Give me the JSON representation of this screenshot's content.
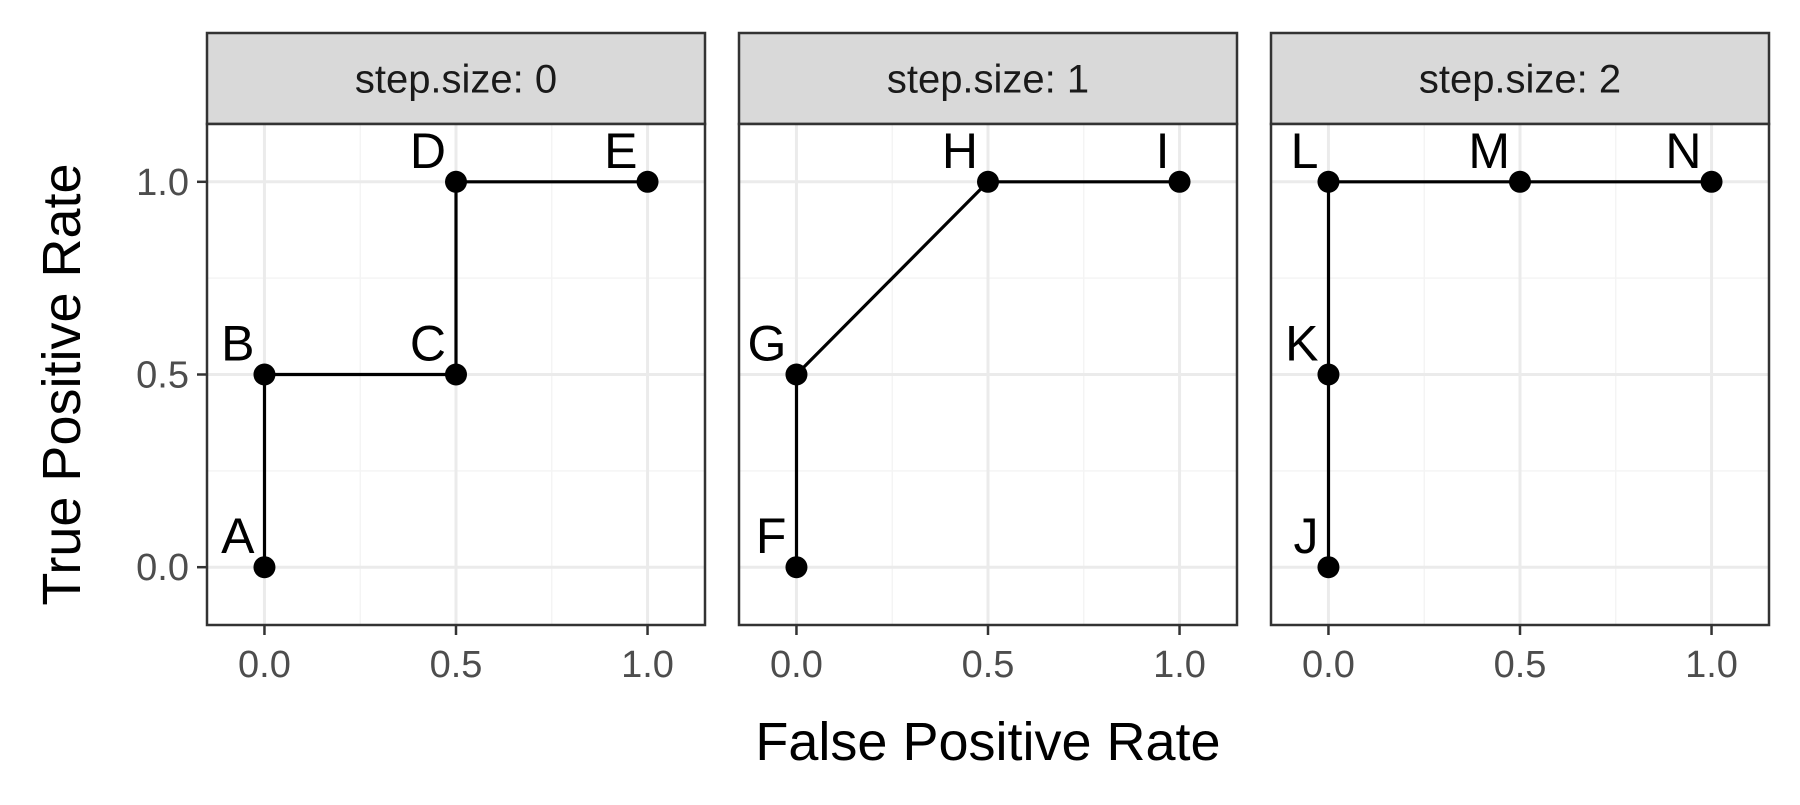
{
  "chart_data": {
    "type": "line",
    "xlabel": "False Positive Rate",
    "ylabel": "True Positive Rate",
    "xlim": [
      -0.15,
      1.15
    ],
    "ylim": [
      -0.15,
      1.15
    ],
    "x_ticks": [
      "0.0",
      "0.5",
      "1.0"
    ],
    "y_ticks": [
      "0.0",
      "0.5",
      "1.0"
    ],
    "grid": true,
    "legend": "none",
    "colors": {
      "strip_background": "#d9d9d9",
      "panel_border": "#333333",
      "grid_major": "#ebebeb",
      "grid_minor": "#f4f4f4",
      "line": "#000000"
    },
    "panels": [
      {
        "strip": "step.size: 0",
        "points": [
          {
            "label": "A",
            "x": 0.0,
            "y": 0.0
          },
          {
            "label": "B",
            "x": 0.0,
            "y": 0.5
          },
          {
            "label": "C",
            "x": 0.5,
            "y": 0.5
          },
          {
            "label": "D",
            "x": 0.5,
            "y": 1.0
          },
          {
            "label": "E",
            "x": 1.0,
            "y": 1.0
          }
        ]
      },
      {
        "strip": "step.size: 1",
        "points": [
          {
            "label": "F",
            "x": 0.0,
            "y": 0.0
          },
          {
            "label": "G",
            "x": 0.0,
            "y": 0.5
          },
          {
            "label": "H",
            "x": 0.5,
            "y": 1.0
          },
          {
            "label": "I",
            "x": 1.0,
            "y": 1.0
          }
        ]
      },
      {
        "strip": "step.size: 2",
        "points": [
          {
            "label": "J",
            "x": 0.0,
            "y": 0.0
          },
          {
            "label": "K",
            "x": 0.0,
            "y": 0.5
          },
          {
            "label": "L",
            "x": 0.0,
            "y": 1.0
          },
          {
            "label": "M",
            "x": 0.5,
            "y": 1.0
          },
          {
            "label": "N",
            "x": 1.0,
            "y": 1.0
          }
        ]
      }
    ]
  }
}
